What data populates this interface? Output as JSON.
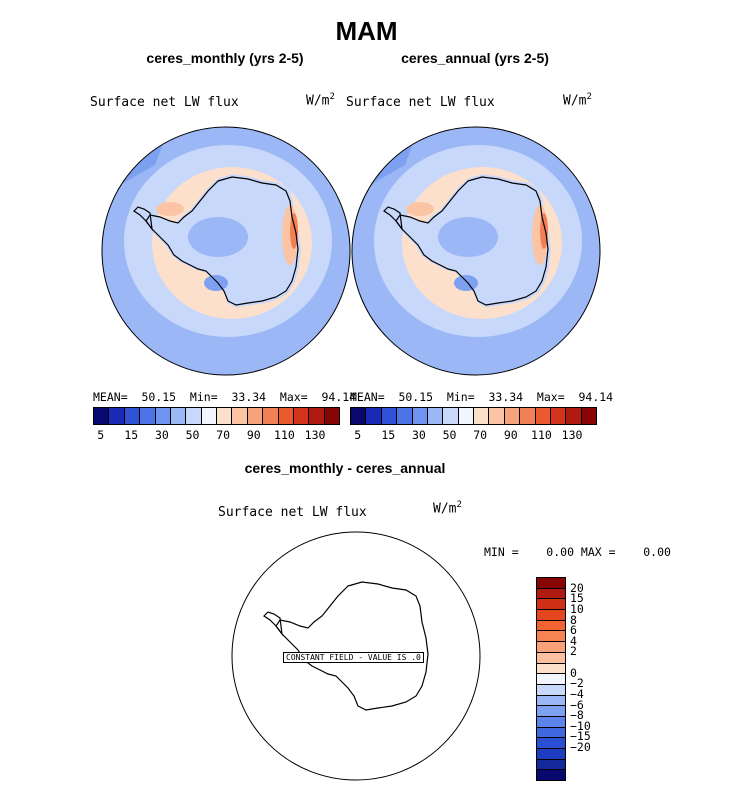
{
  "figure": {
    "title": "MAM"
  },
  "panels": [
    {
      "title": "ceres_monthly (yrs 2-5)",
      "variable": "Surface net LW flux",
      "units": "W/m",
      "units_exp": "2",
      "stats": "MEAN=  50.15  Min=  33.34  Max=  94.14"
    },
    {
      "title": "ceres_annual (yrs 2-5)",
      "variable": "Surface net LW flux",
      "units": "W/m",
      "units_exp": "2",
      "stats": "MEAN=  50.15  Min=  33.34  Max=  94.14"
    }
  ],
  "diff_panel": {
    "title": "ceres_monthly - ceres_annual",
    "variable": "Surface net LW flux",
    "units": "W/m",
    "units_exp": "2",
    "stats": "MIN =    0.00 MAX =    0.00",
    "constant_label": "CONSTANT FIELD - VALUE IS .0"
  },
  "colorbar_main": {
    "colors": [
      "#08086e",
      "#1a2ab4",
      "#2f52d6",
      "#4d74e6",
      "#6f94ef",
      "#9bb7f5",
      "#c7d8fb",
      "#f1f5fd",
      "#fde0cc",
      "#fbc4a4",
      "#f7a47e",
      "#f28055",
      "#eb5a2f",
      "#d4331c",
      "#b11a10",
      "#870505"
    ],
    "labels": [
      "5",
      "15",
      "30",
      "50",
      "70",
      "90",
      "110",
      "130"
    ]
  },
  "colorbar_diff": {
    "colors": [
      "#870505",
      "#b11a10",
      "#cf3015",
      "#e5461f",
      "#f26431",
      "#f78354",
      "#f9a17a",
      "#fbc0a1",
      "#fde0cc",
      "#f1f5fd",
      "#c7d8fb",
      "#9bb7f5",
      "#7da1f0",
      "#5c84e9",
      "#3f68df",
      "#2a4fd2",
      "#1f3cc0",
      "#14299c",
      "#08086e"
    ],
    "labels": [
      "20",
      "15",
      "10",
      "8",
      "6",
      "4",
      "2",
      "0",
      "−2",
      "−4",
      "−6",
      "−8",
      "−10",
      "−15",
      "−20"
    ]
  },
  "map_colors": {
    "ocean_far": "#9bb7f5",
    "ocean_near": "#c7d8fb",
    "sea_low": "#7da1f0",
    "coast_warm": "#fde0cc",
    "coast_warmer": "#fbc4a4",
    "coast_hot": "#f28055",
    "land_interior": "#c7d8fb",
    "land_deep": "#9bb7f5"
  }
}
